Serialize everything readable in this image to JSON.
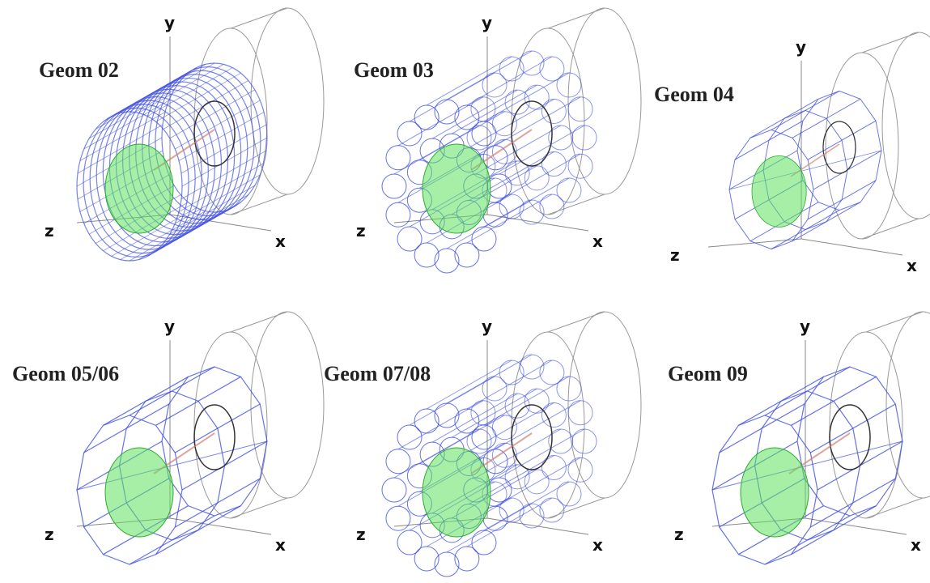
{
  "panels": [
    {
      "title": "Geom 02",
      "axes": {
        "y": "y",
        "z": "z",
        "x": "x"
      }
    },
    {
      "title": "Geom 03",
      "axes": {
        "y": "y",
        "z": "z",
        "x": "x"
      }
    },
    {
      "title": "Geom 04",
      "axes": {
        "y": "y",
        "z": "z",
        "x": "x"
      }
    },
    {
      "title": "Geom 05/06",
      "axes": {
        "y": "y",
        "z": "z",
        "x": "x"
      }
    },
    {
      "title": "Geom 07/08",
      "axes": {
        "y": "y",
        "z": "z",
        "x": "x"
      }
    },
    {
      "title": "Geom 09",
      "axes": {
        "y": "y",
        "z": "z",
        "x": "x"
      }
    }
  ]
}
